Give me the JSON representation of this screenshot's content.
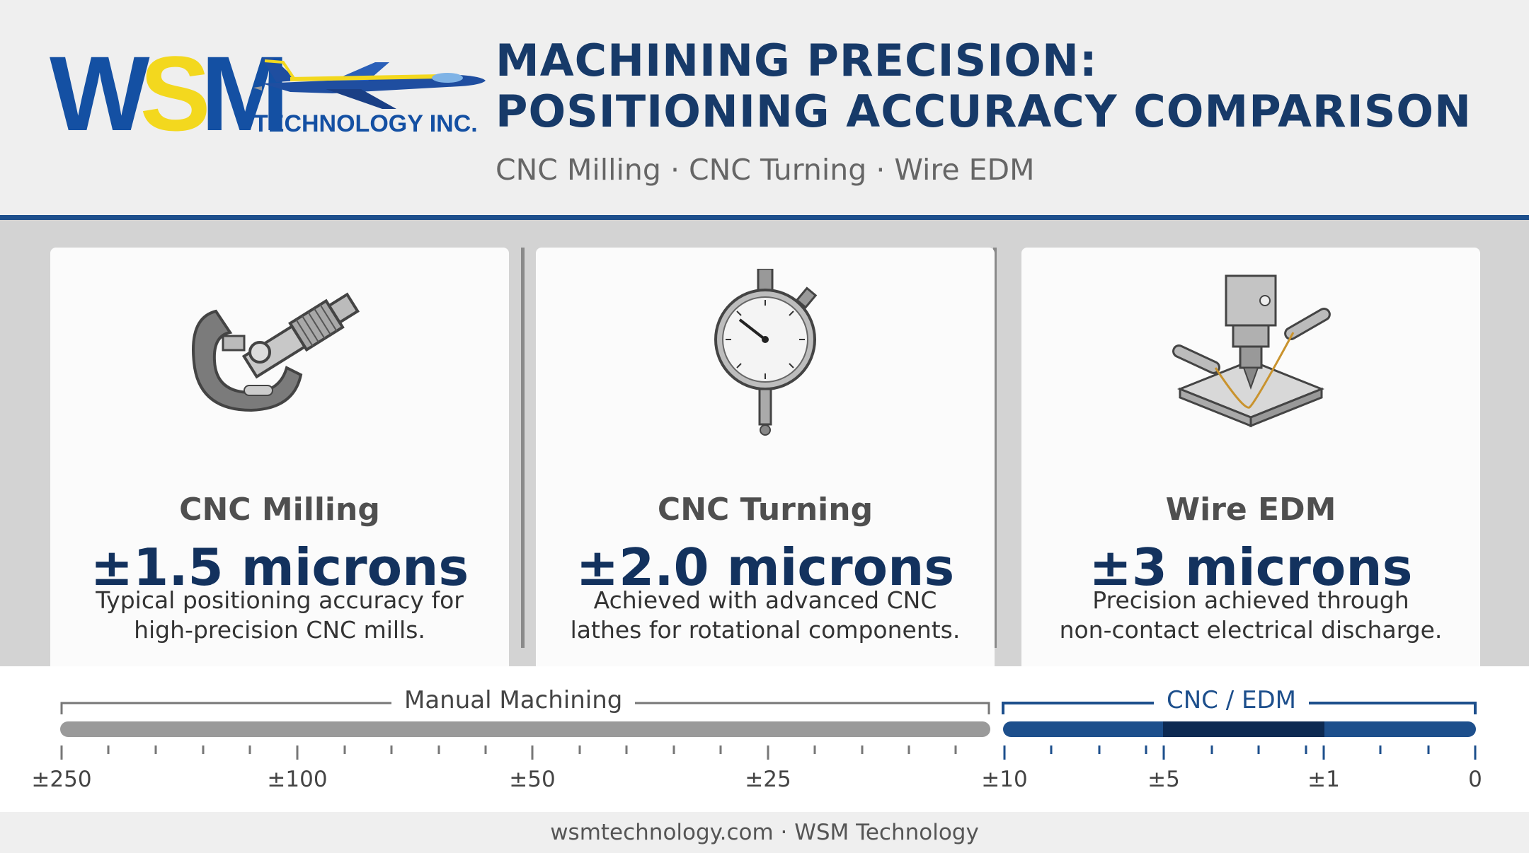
{
  "header": {
    "logo_text": "WSM",
    "logo_subtitle": "TECHNOLOGY INC.",
    "title_line1": "MACHINING PRECISION:",
    "title_line2": "POSITIONING ACCURACY COMPARISON",
    "subtitle": "CNC Milling · CNC Turning · Wire EDM"
  },
  "cards": [
    {
      "icon": "micrometer-icon",
      "name": "CNC Milling",
      "value": "±1.5 microns",
      "desc_line1": "Typical positioning accuracy for",
      "desc_line2": "high-precision CNC mills."
    },
    {
      "icon": "dial-indicator-icon",
      "name": "CNC Turning",
      "value": "±2.0 microns",
      "desc_line1": "Achieved with advanced CNC",
      "desc_line2": "lathes for rotational components."
    },
    {
      "icon": "wire-edm-icon",
      "name": "Wire EDM",
      "value": "±3 microns",
      "desc_line1": "Precision achieved through",
      "desc_line2": "non-contact electrical discharge."
    }
  ],
  "scale": {
    "manual_label": "Manual Machining",
    "cnc_label": "CNC / EDM",
    "ticks": [
      "±250",
      "±100",
      "±50",
      "±25",
      "±10",
      "±5",
      "±1",
      "0"
    ]
  },
  "footer": {
    "text": "wsmtechnology.com · WSM Technology"
  },
  "colors": {
    "brand_blue": "#1450a3",
    "brand_yellow": "#f3d81e",
    "title_navy": "#173a69",
    "bar_gray": "#9a9a9a",
    "bar_blue": "#1d4f8c",
    "bar_dark": "#0d2a52"
  }
}
